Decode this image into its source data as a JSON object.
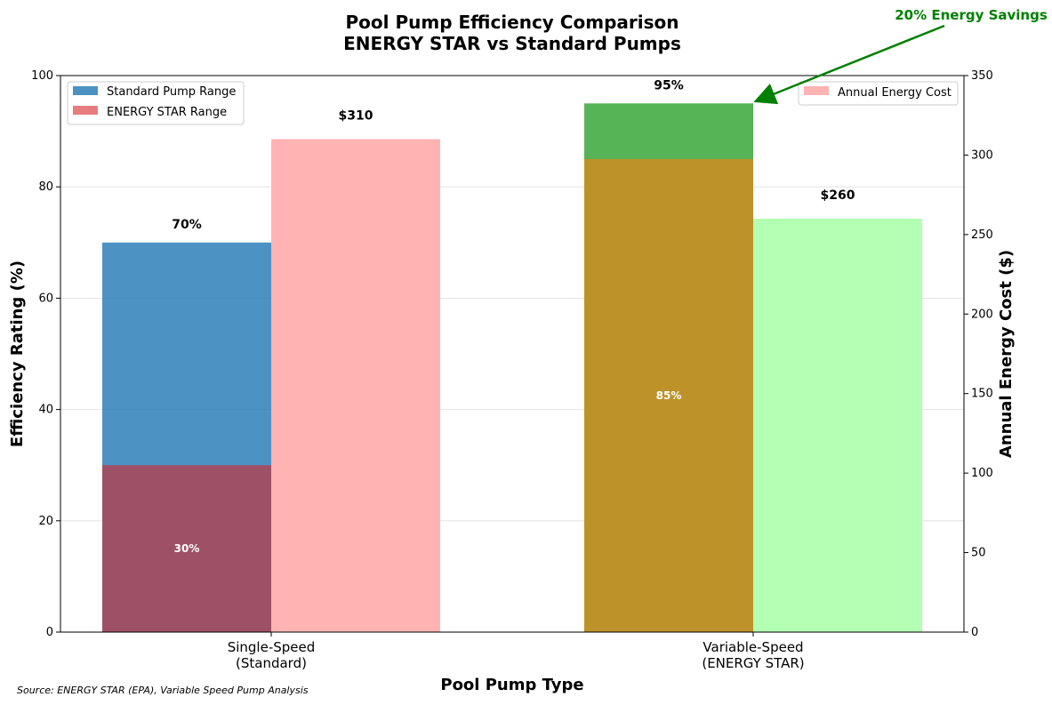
{
  "chart_data": {
    "type": "bar",
    "title": "Pool Pump Efficiency Comparison",
    "subtitle": "ENERGY STAR vs Standard Pumps",
    "xlabel": "Pool Pump Type",
    "ylabel": "Efficiency Rating (%)",
    "y2label": "Annual Energy Cost ($)",
    "categories": [
      "Single-Speed\n(Standard)",
      "Variable-Speed\n(ENERGY STAR)"
    ],
    "ylim": [
      0,
      100
    ],
    "y2lim": [
      0,
      350
    ],
    "yticks": [
      0,
      20,
      40,
      60,
      80,
      100
    ],
    "y2ticks": [
      0,
      50,
      100,
      150,
      200,
      250,
      300,
      350
    ],
    "grid": true,
    "efficiency": {
      "max": [
        70,
        95
      ],
      "min": [
        30,
        85
      ],
      "max_labels": [
        "70%",
        "95%"
      ],
      "min_labels": [
        "30%",
        "85%"
      ]
    },
    "series": [
      {
        "name": "Standard Pump Range",
        "color": "#1f77b4"
      },
      {
        "name": "ENERGY STAR Range",
        "color": "#d62728"
      },
      {
        "name": "Annual Energy Cost",
        "values": [
          310,
          260
        ],
        "labels": [
          "$310",
          "$260"
        ],
        "colors": [
          "#ffb3b3",
          "#b3ffb3"
        ]
      }
    ],
    "legend_left_placement": "upper-left",
    "legend_right_placement": "upper-right",
    "annotation": {
      "text": "20% Energy Savings",
      "color": "#008000",
      "points_to": {
        "category": 1,
        "value": 95
      }
    },
    "source": "Source: ENERGY STAR (EPA), Variable Speed Pump Analysis"
  }
}
